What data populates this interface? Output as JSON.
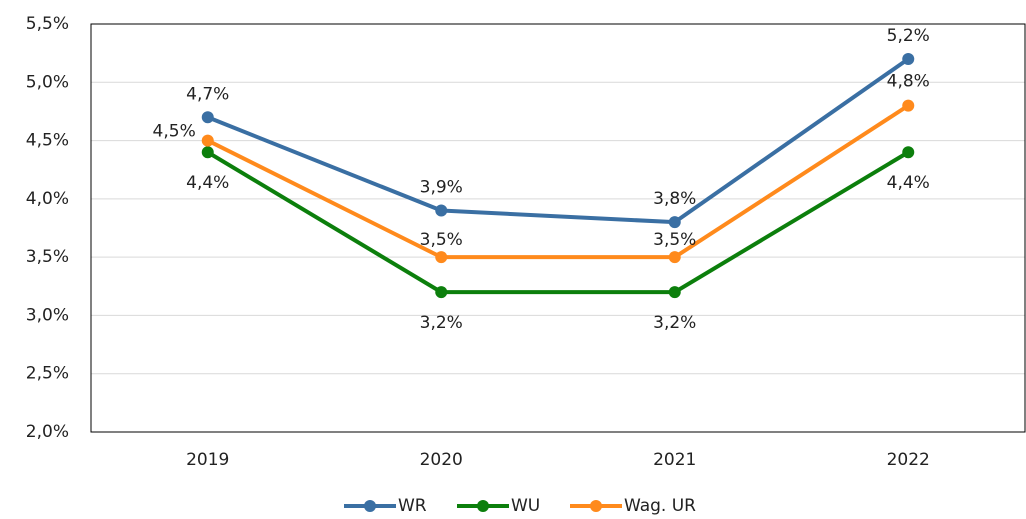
{
  "chart_data": {
    "type": "line",
    "categories": [
      "2019",
      "2020",
      "2021",
      "2022"
    ],
    "series": [
      {
        "name": "WR",
        "color": "#3a6fa3",
        "values": [
          4.7,
          3.9,
          3.8,
          5.2
        ],
        "value_labels": [
          "4,7%",
          "3,9%",
          "3,8%",
          "5,2%"
        ]
      },
      {
        "name": "WU",
        "color": "#0c7f0c",
        "values": [
          4.4,
          3.2,
          3.2,
          4.4
        ],
        "value_labels": [
          "4,4%",
          "3,2%",
          "3,2%",
          "4,4%"
        ]
      },
      {
        "name": "Wag. UR",
        "color": "#ff8a1c",
        "values": [
          4.5,
          3.5,
          3.5,
          4.8
        ],
        "value_labels": [
          "4,5%",
          "3,5%",
          "3,5%",
          "4,8%"
        ]
      }
    ],
    "ylim": [
      2.0,
      5.5
    ],
    "yticks": [
      {
        "value": 2.0,
        "label": "2,0%"
      },
      {
        "value": 2.5,
        "label": "2,5%"
      },
      {
        "value": 3.0,
        "label": "3,0%"
      },
      {
        "value": 3.5,
        "label": "3,5%"
      },
      {
        "value": 4.0,
        "label": "4,0%"
      },
      {
        "value": 4.5,
        "label": "4,5%"
      },
      {
        "value": 5.0,
        "label": "5,0%"
      },
      {
        "value": 5.5,
        "label": "5,5%"
      }
    ],
    "grid": true,
    "legend": "bottom"
  }
}
